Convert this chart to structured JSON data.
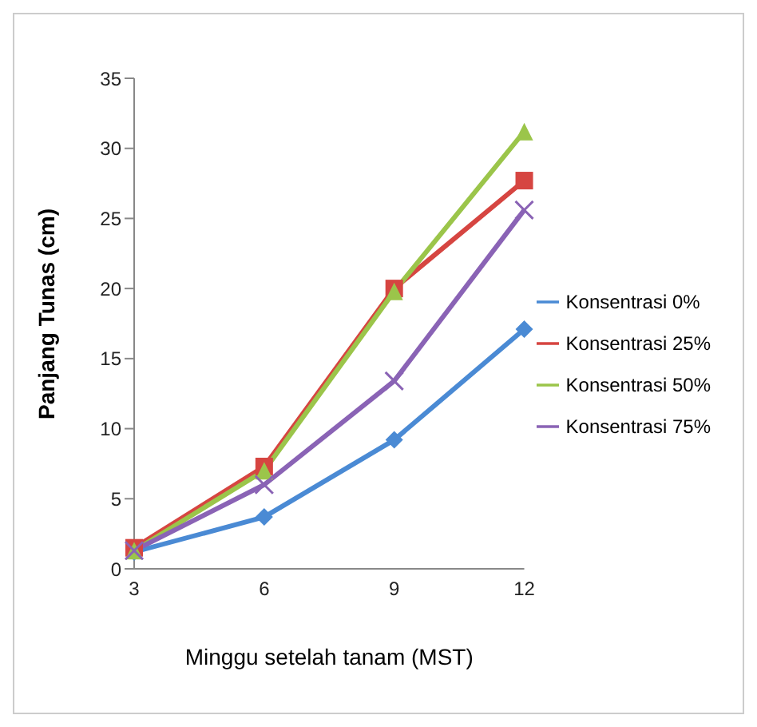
{
  "chart_data": {
    "type": "line",
    "xlabel": "Minggu setelah tanam  (MST)",
    "ylabel": "Panjang Tunas (cm)",
    "categories": [
      "3",
      "6",
      "9",
      "12"
    ],
    "ylim": [
      0,
      35
    ],
    "yticks": [
      0,
      5,
      10,
      15,
      20,
      25,
      30,
      35
    ],
    "grid": false,
    "legend": "right",
    "line_style": "solid",
    "series": [
      {
        "name": "Konsentrasi 0%",
        "color": "#4a8ad4",
        "marker": "diamond",
        "values": [
          1.2,
          3.7,
          9.2,
          17.1
        ]
      },
      {
        "name": "Konsentrasi 25%",
        "color": "#d64541",
        "marker": "square",
        "values": [
          1.5,
          7.3,
          20,
          27.7
        ]
      },
      {
        "name": "Konsentrasi 50%",
        "color": "#9bc54a",
        "marker": "triangle",
        "values": [
          1.3,
          7.0,
          19.8,
          31.2
        ]
      },
      {
        "name": "Konsentrasi 75%",
        "color": "#8a63b5",
        "marker": "cross",
        "values": [
          1.3,
          6.0,
          13.4,
          25.6
        ]
      }
    ]
  }
}
